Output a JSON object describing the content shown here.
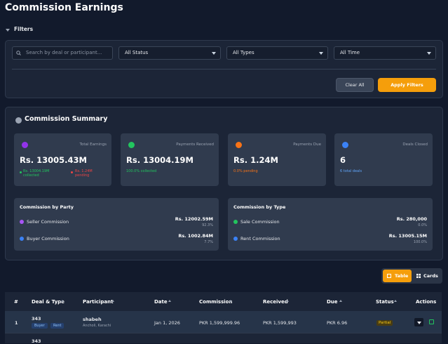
{
  "header": {
    "title": "Commission Earnings"
  },
  "filters": {
    "label": "Filters",
    "search_placeholder": "Search by deal or participant...",
    "status": "All Status",
    "types": "All Types",
    "time": "All Time",
    "clear": "Clear All",
    "apply": "Apply Filters"
  },
  "summary": {
    "title": "Commission Summary",
    "cards": [
      {
        "label": "Total Earnings",
        "value": "Rs. 13005.43M",
        "notes": [
          "Rs. 13004.19M collected",
          "Rs. 1.24M pending"
        ]
      },
      {
        "label": "Payments Received",
        "value": "Rs. 13004.19M",
        "notes": [
          "100.0% collected"
        ]
      },
      {
        "label": "Payments Due",
        "value": "Rs. 1.24M",
        "notes": [
          "0.0% pending"
        ]
      },
      {
        "label": "Deals Closed",
        "value": "6",
        "notes": [
          "6 total deals"
        ]
      }
    ],
    "by_party": {
      "title": "Commission by Party",
      "items": [
        {
          "name": "Seller Commission",
          "amount": "Rs. 12002.59M",
          "share": "92.3%"
        },
        {
          "name": "Buyer Commission",
          "amount": "Rs. 1002.84M",
          "share": "7.7%"
        }
      ]
    },
    "by_type": {
      "title": "Commission by Type",
      "items": [
        {
          "name": "Sale Commission",
          "amount": "Rs. 280,000",
          "share": "0.0%"
        },
        {
          "name": "Rent Commission",
          "amount": "Rs. 13005.15M",
          "share": "100.0%"
        }
      ]
    }
  },
  "view": {
    "table": "Table",
    "cards": "Cards"
  },
  "table": {
    "headers": [
      "#",
      "Deal & Type",
      "Participant",
      "Date",
      "Commission",
      "Received",
      "Due",
      "Status",
      "Actions"
    ],
    "rows": [
      {
        "index": "1",
        "deal": "343",
        "tags": [
          "Buyer",
          "Rent"
        ],
        "participant": "shabeh",
        "location": "Ancholi, Karachi",
        "date": "Jan 1, 2026",
        "commission": "PKR 1,599,999.96",
        "received": "PKR 1,599,993",
        "due": "PKR 6.96",
        "status": "Partial"
      },
      {
        "deal": "343"
      }
    ]
  }
}
